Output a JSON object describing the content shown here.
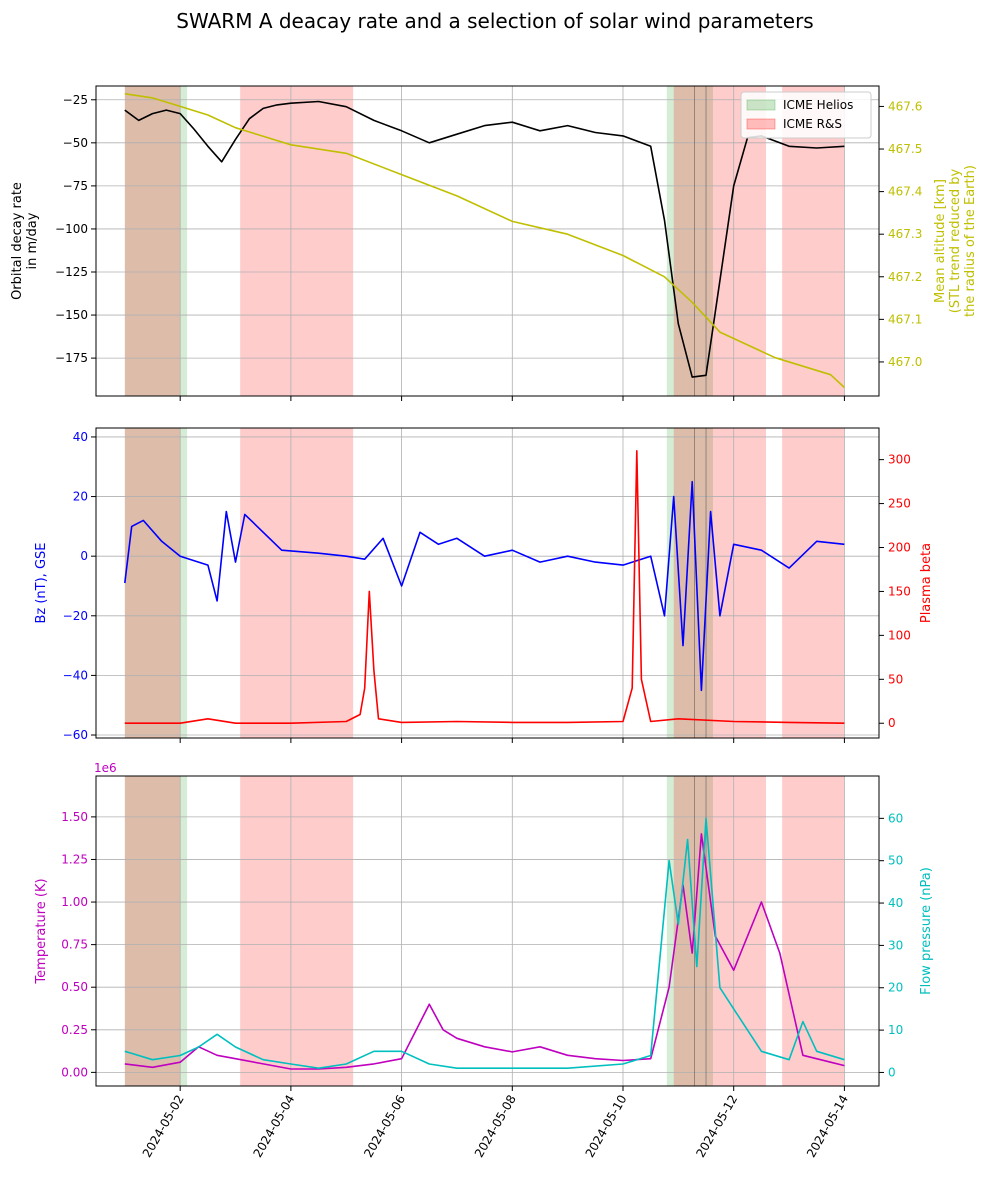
{
  "figure": {
    "title": "SWARM A deacay rate and a selection of solar wind parameters"
  },
  "colors": {
    "decay": "#000000",
    "altitude": "#bfbf00",
    "bz": "#0000ff",
    "beta": "#ff0000",
    "temperature": "#bf00bf",
    "pressure": "#00bfbf",
    "icme_helios": "#2ca02c",
    "icme_rs": "#ff0000",
    "grid": "#b0b0b0"
  },
  "chart_data": [
    {
      "type": "line",
      "panel": "top",
      "xlabel": "",
      "x_ticks": [
        "2024-05-02",
        "2024-05-04",
        "2024-05-06",
        "2024-05-08",
        "2024-05-10",
        "2024-05-12",
        "2024-05-14"
      ],
      "xlim": [
        "2024-04-30T11:30",
        "2024-05-14T15:00"
      ],
      "grid": true,
      "legend": {
        "placement": "top-right",
        "entries": [
          {
            "label": "ICME Helios",
            "color": "icme_helios"
          },
          {
            "label": "ICME R&S",
            "color": "icme_rs"
          }
        ]
      },
      "left_axis": {
        "label_lines": [
          "Orbital decay rate",
          "in m/day"
        ],
        "ylim": [
          -197,
          -17
        ],
        "ticks": [
          -175,
          -150,
          -125,
          -100,
          -75,
          -50,
          -25
        ],
        "tick_labels": [
          "−175",
          "−150",
          "−125",
          "−100",
          "−75",
          "−50",
          "−25"
        ],
        "color": "#000000"
      },
      "right_axis": {
        "label_lines": [
          "Mean altitude [km]",
          "(STL trend reduced by",
          "the radius of the Earth)"
        ],
        "ylim": [
          466.92,
          467.648
        ],
        "ticks": [
          467.0,
          467.1,
          467.2,
          467.3,
          467.4,
          467.5,
          467.6
        ],
        "tick_labels": [
          "467.0",
          "467.1",
          "467.2",
          "467.3",
          "467.4",
          "467.5",
          "467.6"
        ],
        "color": "altitude"
      },
      "series": [
        {
          "axis": "left",
          "color": "decay",
          "x": [
            "2024-05-01T00:00",
            "2024-05-01T06:00",
            "2024-05-01T12:00",
            "2024-05-01T18:00",
            "2024-05-02T00:00",
            "2024-05-02T06:00",
            "2024-05-02T12:00",
            "2024-05-02T18:00",
            "2024-05-03T00:00",
            "2024-05-03T06:00",
            "2024-05-03T12:00",
            "2024-05-03T18:00",
            "2024-05-04T00:00",
            "2024-05-04T12:00",
            "2024-05-05T00:00",
            "2024-05-05T12:00",
            "2024-05-06T00:00",
            "2024-05-06T12:00",
            "2024-05-07T00:00",
            "2024-05-07T12:00",
            "2024-05-08T00:00",
            "2024-05-08T12:00",
            "2024-05-09T00:00",
            "2024-05-09T12:00",
            "2024-05-10T00:00",
            "2024-05-10T12:00",
            "2024-05-10T18:00",
            "2024-05-11T00:00",
            "2024-05-11T06:00",
            "2024-05-11T12:00",
            "2024-05-11T18:00",
            "2024-05-12T00:00",
            "2024-05-12T06:00",
            "2024-05-12T12:00",
            "2024-05-13T00:00",
            "2024-05-13T12:00",
            "2024-05-14T00:00"
          ],
          "y": [
            -31,
            -37,
            -33,
            -31,
            -33,
            -42,
            -52,
            -61,
            -48,
            -36,
            -30,
            -28,
            -27,
            -26,
            -29,
            -37,
            -43,
            -50,
            -45,
            -40,
            -38,
            -43,
            -40,
            -44,
            -46,
            -52,
            -95,
            -155,
            -186,
            -185,
            -130,
            -75,
            -47,
            -46,
            -52,
            -53,
            -52
          ]
        },
        {
          "axis": "right",
          "color": "altitude",
          "x": [
            "2024-05-01T00:00",
            "2024-05-01T12:00",
            "2024-05-02T00:00",
            "2024-05-02T12:00",
            "2024-05-03T00:00",
            "2024-05-04T00:00",
            "2024-05-05T00:00",
            "2024-05-06T00:00",
            "2024-05-07T00:00",
            "2024-05-08T00:00",
            "2024-05-09T00:00",
            "2024-05-10T00:00",
            "2024-05-10T18:00",
            "2024-05-11T06:00",
            "2024-05-11T18:00",
            "2024-05-12T06:00",
            "2024-05-12T18:00",
            "2024-05-13T06:00",
            "2024-05-13T18:00",
            "2024-05-14T00:00"
          ],
          "y": [
            467.63,
            467.62,
            467.6,
            467.58,
            467.55,
            467.51,
            467.49,
            467.44,
            467.39,
            467.33,
            467.3,
            467.25,
            467.2,
            467.14,
            467.07,
            467.04,
            467.01,
            466.99,
            466.97,
            466.94
          ]
        }
      ],
      "spans": [
        {
          "kind": "icme_helios",
          "start": "2024-05-01T00:00",
          "end": "2024-05-02T03:00"
        },
        {
          "kind": "icme_rs",
          "start": "2024-05-01T00:00",
          "end": "2024-05-02T00:00"
        },
        {
          "kind": "icme_rs",
          "start": "2024-05-03T02:00",
          "end": "2024-05-05T03:00"
        },
        {
          "kind": "icme_helios",
          "start": "2024-05-10T19:00",
          "end": "2024-05-11T15:00"
        },
        {
          "kind": "icme_rs",
          "start": "2024-05-10T22:00",
          "end": "2024-05-12T14:00"
        },
        {
          "kind": "icme_rs",
          "start": "2024-05-12T21:00",
          "end": "2024-05-14T00:00"
        }
      ],
      "vlines": [
        "2024-05-11T07:00",
        "2024-05-11T12:00"
      ]
    },
    {
      "type": "line",
      "panel": "middle",
      "xlabel": "",
      "x_ticks": [
        "2024-05-02",
        "2024-05-04",
        "2024-05-06",
        "2024-05-08",
        "2024-05-10",
        "2024-05-12",
        "2024-05-14"
      ],
      "xlim": [
        "2024-04-30T11:30",
        "2024-05-14T15:00"
      ],
      "grid": true,
      "left_axis": {
        "label_lines": [
          "Bz (nT), GSE"
        ],
        "ylim": [
          -61,
          43
        ],
        "ticks": [
          -60,
          -40,
          -20,
          0,
          20,
          40
        ],
        "tick_labels": [
          "−60",
          "−40",
          "−20",
          "0",
          "20",
          "40"
        ],
        "color": "bz"
      },
      "right_axis": {
        "label_lines": [
          "Plasma beta"
        ],
        "ylim": [
          -16.8,
          336
        ],
        "ticks": [
          0,
          50,
          100,
          150,
          200,
          250,
          300
        ],
        "tick_labels": [
          "0",
          "50",
          "100",
          "150",
          "200",
          "250",
          "300"
        ],
        "color": "beta"
      },
      "series": [
        {
          "axis": "left",
          "color": "bz",
          "x": [
            "2024-05-01T00:00",
            "2024-05-01T03:00",
            "2024-05-01T08:00",
            "2024-05-01T16:00",
            "2024-05-02T00:00",
            "2024-05-02T12:00",
            "2024-05-02T16:00",
            "2024-05-02T20:00",
            "2024-05-03T00:00",
            "2024-05-03T04:00",
            "2024-05-03T20:00",
            "2024-05-04T12:00",
            "2024-05-05T00:00",
            "2024-05-05T08:00",
            "2024-05-05T16:00",
            "2024-05-06T00:00",
            "2024-05-06T08:00",
            "2024-05-06T16:00",
            "2024-05-07T00:00",
            "2024-05-07T12:00",
            "2024-05-08T00:00",
            "2024-05-08T12:00",
            "2024-05-09T00:00",
            "2024-05-09T12:00",
            "2024-05-10T00:00",
            "2024-05-10T12:00",
            "2024-05-10T18:00",
            "2024-05-10T22:00",
            "2024-05-11T02:00",
            "2024-05-11T06:00",
            "2024-05-11T10:00",
            "2024-05-11T14:00",
            "2024-05-11T18:00",
            "2024-05-12T00:00",
            "2024-05-12T12:00",
            "2024-05-13T00:00",
            "2024-05-13T12:00",
            "2024-05-14T00:00"
          ],
          "y": [
            -9,
            10,
            12,
            5,
            0,
            -3,
            -15,
            15,
            -2,
            14,
            2,
            1,
            0,
            -1,
            6,
            -10,
            8,
            4,
            6,
            0,
            2,
            -2,
            0,
            -2,
            -3,
            0,
            -20,
            20,
            -30,
            25,
            -45,
            15,
            -20,
            4,
            2,
            -4,
            5,
            4
          ]
        },
        {
          "axis": "right",
          "color": "beta",
          "x": [
            "2024-05-01T00:00",
            "2024-05-02T00:00",
            "2024-05-02T12:00",
            "2024-05-03T00:00",
            "2024-05-04T00:00",
            "2024-05-05T00:00",
            "2024-05-05T06:00",
            "2024-05-05T08:00",
            "2024-05-05T10:00",
            "2024-05-05T12:00",
            "2024-05-05T14:00",
            "2024-05-06T00:00",
            "2024-05-07T00:00",
            "2024-05-08T00:00",
            "2024-05-09T00:00",
            "2024-05-10T00:00",
            "2024-05-10T04:00",
            "2024-05-10T06:00",
            "2024-05-10T08:00",
            "2024-05-10T12:00",
            "2024-05-11T00:00",
            "2024-05-12T00:00",
            "2024-05-13T00:00",
            "2024-05-14T00:00"
          ],
          "y": [
            0,
            0,
            5,
            0,
            0,
            2,
            10,
            40,
            150,
            60,
            5,
            1,
            2,
            1,
            1,
            2,
            40,
            310,
            50,
            2,
            5,
            2,
            1,
            0
          ]
        }
      ],
      "spans": [
        {
          "kind": "icme_helios",
          "start": "2024-05-01T00:00",
          "end": "2024-05-02T03:00"
        },
        {
          "kind": "icme_rs",
          "start": "2024-05-01T00:00",
          "end": "2024-05-02T00:00"
        },
        {
          "kind": "icme_rs",
          "start": "2024-05-03T02:00",
          "end": "2024-05-05T03:00"
        },
        {
          "kind": "icme_helios",
          "start": "2024-05-10T19:00",
          "end": "2024-05-11T15:00"
        },
        {
          "kind": "icme_rs",
          "start": "2024-05-10T22:00",
          "end": "2024-05-12T14:00"
        },
        {
          "kind": "icme_rs",
          "start": "2024-05-12T21:00",
          "end": "2024-05-14T00:00"
        }
      ],
      "vlines": [
        "2024-05-11T07:00",
        "2024-05-11T12:00"
      ]
    },
    {
      "type": "line",
      "panel": "bottom",
      "xlabel": "",
      "x_ticks": [
        "2024-05-02",
        "2024-05-04",
        "2024-05-06",
        "2024-05-08",
        "2024-05-10",
        "2024-05-12",
        "2024-05-14"
      ],
      "x_tick_rotation_deg": 60,
      "xlim": [
        "2024-04-30T11:30",
        "2024-05-14T15:00"
      ],
      "grid": true,
      "left_axis": {
        "label_lines": [
          "Temperature (K)"
        ],
        "offset_text": "1e6",
        "ylim": [
          -0.08,
          1.74
        ],
        "ticks": [
          0,
          0.25,
          0.5,
          0.75,
          1.0,
          1.25,
          1.5
        ],
        "tick_labels": [
          "0.00",
          "0.25",
          "0.50",
          "0.75",
          "1.00",
          "1.25",
          "1.50"
        ],
        "color": "temperature"
      },
      "right_axis": {
        "label_lines": [
          "Flow pressure (nPa)"
        ],
        "ylim": [
          -3.2,
          70
        ],
        "ticks": [
          0,
          10,
          20,
          30,
          40,
          50,
          60
        ],
        "tick_labels": [
          "0",
          "10",
          "20",
          "30",
          "40",
          "50",
          "60"
        ],
        "color": "pressure"
      },
      "series": [
        {
          "axis": "left",
          "color": "temperature",
          "x": [
            "2024-05-01T00:00",
            "2024-05-01T12:00",
            "2024-05-02T00:00",
            "2024-05-02T08:00",
            "2024-05-02T16:00",
            "2024-05-03T00:00",
            "2024-05-03T12:00",
            "2024-05-04T00:00",
            "2024-05-04T12:00",
            "2024-05-05T00:00",
            "2024-05-05T12:00",
            "2024-05-06T00:00",
            "2024-05-06T12:00",
            "2024-05-06T18:00",
            "2024-05-07T00:00",
            "2024-05-07T12:00",
            "2024-05-08T00:00",
            "2024-05-08T12:00",
            "2024-05-09T00:00",
            "2024-05-09T12:00",
            "2024-05-10T00:00",
            "2024-05-10T12:00",
            "2024-05-10T20:00",
            "2024-05-11T02:00",
            "2024-05-11T06:00",
            "2024-05-11T10:00",
            "2024-05-11T16:00",
            "2024-05-12T00:00",
            "2024-05-12T12:00",
            "2024-05-12T20:00",
            "2024-05-13T06:00",
            "2024-05-13T18:00",
            "2024-05-14T00:00"
          ],
          "y": [
            0.05,
            0.03,
            0.06,
            0.15,
            0.1,
            0.08,
            0.05,
            0.02,
            0.02,
            0.03,
            0.05,
            0.08,
            0.4,
            0.25,
            0.2,
            0.15,
            0.12,
            0.15,
            0.1,
            0.08,
            0.07,
            0.08,
            0.5,
            1.1,
            0.7,
            1.4,
            0.8,
            0.6,
            1.0,
            0.7,
            0.1,
            0.06,
            0.04
          ]
        },
        {
          "axis": "right",
          "color": "pressure",
          "x": [
            "2024-05-01T00:00",
            "2024-05-01T12:00",
            "2024-05-02T00:00",
            "2024-05-02T08:00",
            "2024-05-02T16:00",
            "2024-05-03T00:00",
            "2024-05-03T12:00",
            "2024-05-04T00:00",
            "2024-05-04T12:00",
            "2024-05-05T00:00",
            "2024-05-05T12:00",
            "2024-05-06T00:00",
            "2024-05-06T12:00",
            "2024-05-07T00:00",
            "2024-05-07T12:00",
            "2024-05-08T00:00",
            "2024-05-09T00:00",
            "2024-05-10T00:00",
            "2024-05-10T12:00",
            "2024-05-10T20:00",
            "2024-05-11T00:00",
            "2024-05-11T04:00",
            "2024-05-11T08:00",
            "2024-05-11T12:00",
            "2024-05-11T18:00",
            "2024-05-12T00:00",
            "2024-05-12T12:00",
            "2024-05-13T00:00",
            "2024-05-13T06:00",
            "2024-05-13T12:00",
            "2024-05-14T00:00"
          ],
          "y": [
            5,
            3,
            4,
            6,
            9,
            6,
            3,
            2,
            1,
            2,
            5,
            5,
            2,
            1,
            1,
            1,
            1,
            2,
            4,
            50,
            35,
            55,
            25,
            60,
            20,
            15,
            5,
            3,
            12,
            5,
            3
          ]
        }
      ],
      "spans": [
        {
          "kind": "icme_helios",
          "start": "2024-05-01T00:00",
          "end": "2024-05-02T03:00"
        },
        {
          "kind": "icme_rs",
          "start": "2024-05-01T00:00",
          "end": "2024-05-02T00:00"
        },
        {
          "kind": "icme_rs",
          "start": "2024-05-03T02:00",
          "end": "2024-05-05T03:00"
        },
        {
          "kind": "icme_helios",
          "start": "2024-05-10T19:00",
          "end": "2024-05-11T15:00"
        },
        {
          "kind": "icme_rs",
          "start": "2024-05-10T22:00",
          "end": "2024-05-12T14:00"
        },
        {
          "kind": "icme_rs",
          "start": "2024-05-12T21:00",
          "end": "2024-05-14T00:00"
        }
      ],
      "vlines": [
        "2024-05-11T07:00",
        "2024-05-11T12:00"
      ]
    }
  ]
}
